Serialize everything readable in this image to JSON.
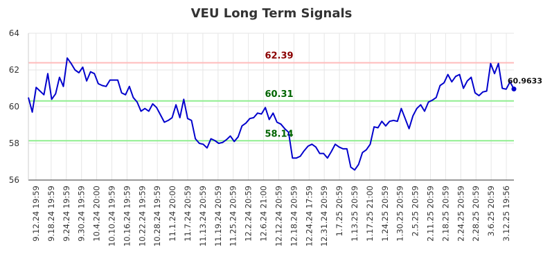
{
  "chart_data": {
    "type": "line",
    "title": "VEU Long Term Signals",
    "ylim": [
      56,
      64
    ],
    "yticks": [
      56,
      58,
      60,
      62,
      64
    ],
    "grid": true,
    "xtick_labels": [
      "9.12.24 19:59",
      "9.18.24 19:59",
      "9.24.24 19:59",
      "9.30.24 19:59",
      "10.4.24 20:00",
      "10.10.24 19:59",
      "10.16.24 19:59",
      "10.22.24 19:59",
      "10.28.24 19:59",
      "11.1.24 20:00",
      "11.7.24 20:59",
      "11.13.24 20:59",
      "11.19.24 20:59",
      "11.25.24 20:59",
      "12.2.24 20:59",
      "12.6.24 21:00",
      "12.12.24 20:59",
      "12.18.24 20:59",
      "12.24.24 17:59",
      "12.31.24 20:59",
      "1.7.25 20:59",
      "1.13.25 20:59",
      "1.17.25 21:00",
      "1.24.25 20:59",
      "1.30.25 20:59",
      "2.5.25 20:59",
      "2.11.25 20:59",
      "2.18.25 20:59",
      "2.24.25 20:59",
      "2.28.25 20:59",
      "3.6.25 20:59",
      "3.12.25 19:56"
    ],
    "series": [
      {
        "color": "#0000cc",
        "values": [
          60.5,
          59.7,
          61.05,
          60.85,
          60.65,
          61.8,
          60.4,
          60.7,
          61.6,
          61.1,
          62.65,
          62.35,
          62.0,
          61.85,
          62.15,
          61.4,
          61.9,
          61.8,
          61.25,
          61.15,
          61.1,
          61.45,
          61.45,
          61.45,
          60.75,
          60.65,
          61.1,
          60.5,
          60.25,
          59.75,
          59.9,
          59.75,
          60.15,
          59.95,
          59.55,
          59.15,
          59.25,
          59.4,
          60.1,
          59.4,
          60.4,
          59.35,
          59.25,
          58.25,
          58.0,
          57.95,
          57.75,
          58.25,
          58.15,
          58.0,
          58.05,
          58.2,
          58.4,
          58.1,
          58.35,
          58.95,
          59.1,
          59.35,
          59.4,
          59.65,
          59.6,
          59.95,
          59.3,
          59.65,
          59.15,
          59.05,
          58.8,
          58.6,
          57.2,
          57.2,
          57.3,
          57.6,
          57.85,
          57.95,
          57.8,
          57.45,
          57.45,
          57.2,
          57.55,
          57.95,
          57.8,
          57.7,
          57.7,
          56.7,
          56.55,
          56.85,
          57.5,
          57.65,
          57.95,
          58.9,
          58.85,
          59.2,
          58.95,
          59.2,
          59.25,
          59.2,
          59.9,
          59.35,
          58.8,
          59.5,
          59.9,
          60.1,
          59.75,
          60.25,
          60.35,
          60.5,
          61.15,
          61.3,
          61.75,
          61.35,
          61.65,
          61.75,
          61.0,
          61.4,
          61.6,
          60.75,
          60.6,
          60.8,
          60.85,
          62.35,
          61.8,
          62.35,
          61.0,
          60.95,
          61.35,
          60.9633
        ]
      }
    ],
    "signals": [
      {
        "value": 62.39,
        "label": "62.39",
        "line_color": "#ffbbbb",
        "text_color": "#8b0000"
      },
      {
        "value": 60.31,
        "label": "60.31",
        "line_color": "#90ee90",
        "text_color": "#006400"
      },
      {
        "value": 58.14,
        "label": "58.14",
        "line_color": "#90ee90",
        "text_color": "#006400"
      }
    ],
    "last_value": 60.9633,
    "last_value_label": "60.9633"
  }
}
